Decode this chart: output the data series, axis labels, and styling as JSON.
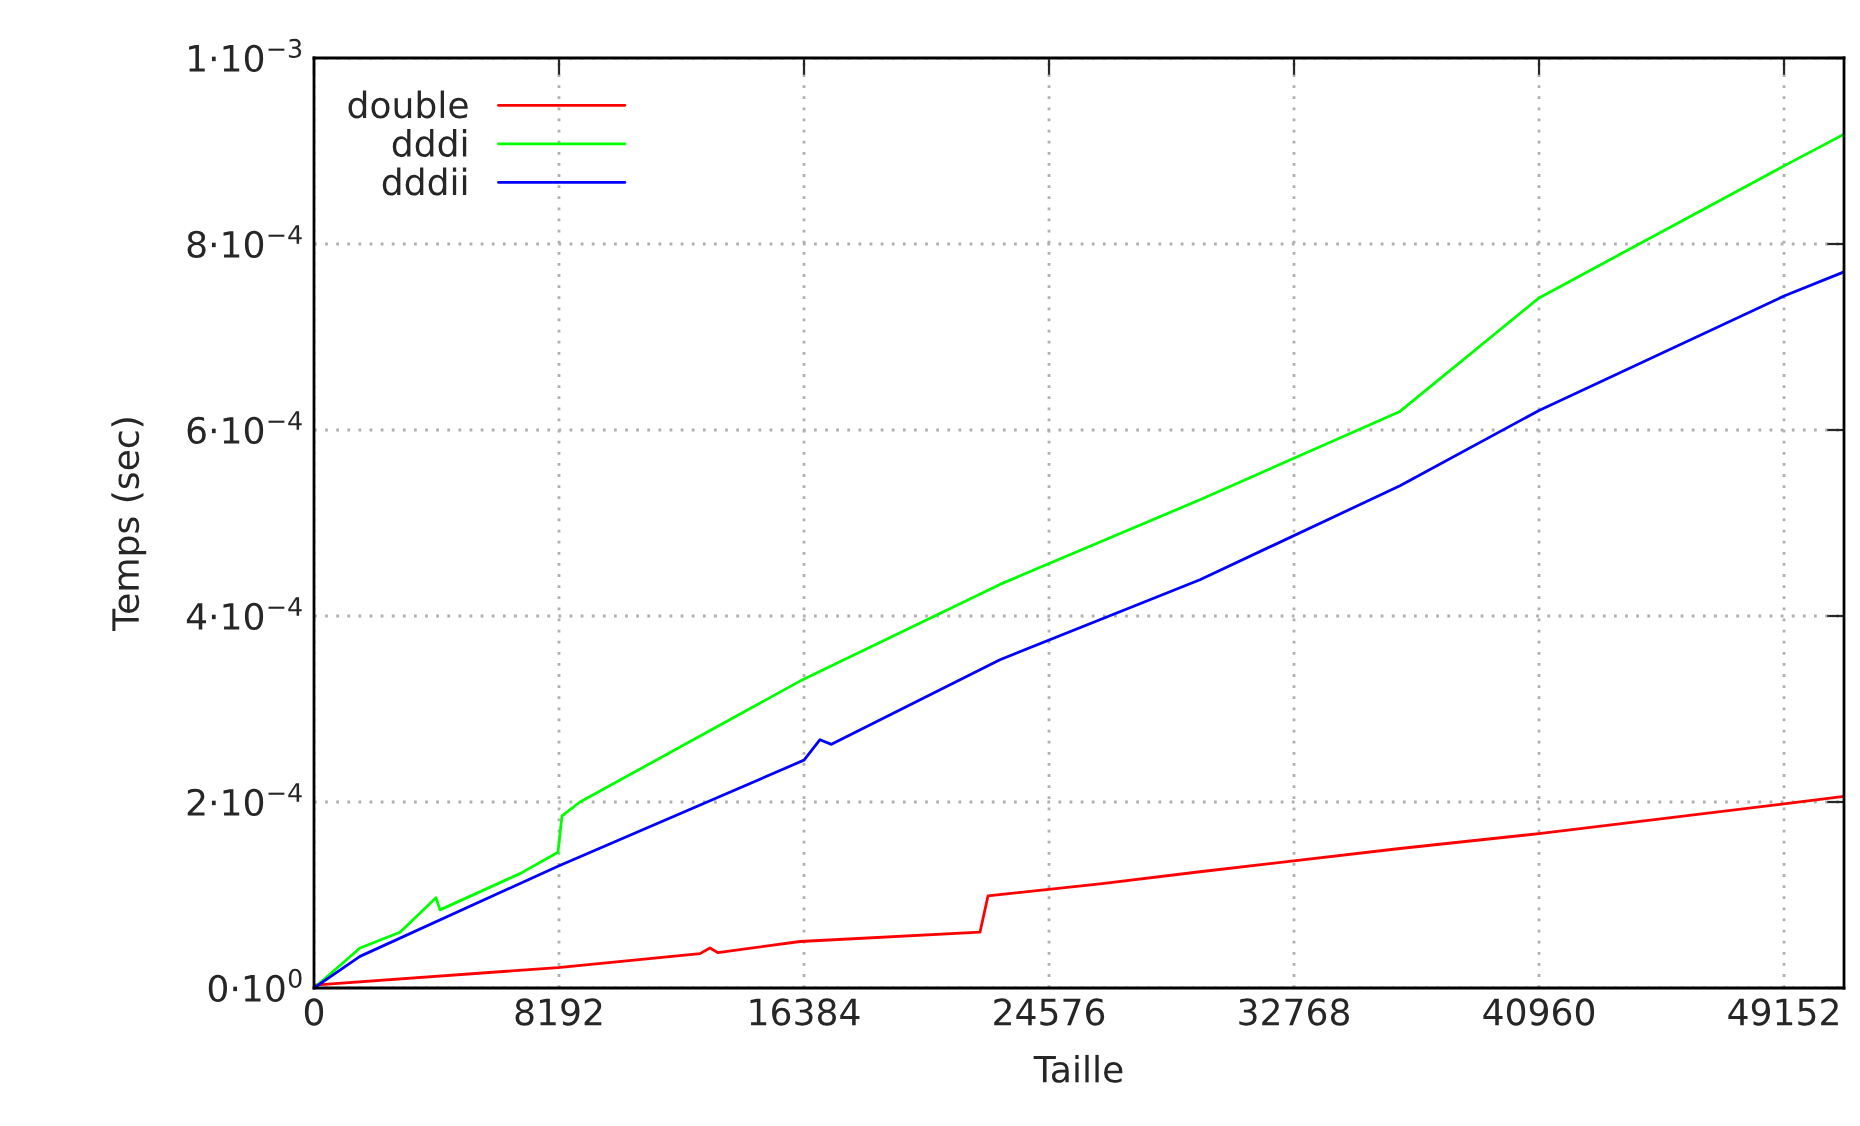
{
  "chart_data": {
    "type": "line",
    "xlabel": "Taille",
    "ylabel": "Temps (sec)",
    "xlim": [
      0,
      51157
    ],
    "xticks": [
      0,
      8192,
      16384,
      24576,
      32768,
      40960,
      49152
    ],
    "ylim": [
      0,
      0.001
    ],
    "yticks": [
      {
        "value": 0,
        "label": "0·10$^{0}$"
      },
      {
        "value": 0.0002,
        "label": "2·10$^{−4}$"
      },
      {
        "value": 0.0004,
        "label": "4·10$^{−4}$"
      },
      {
        "value": 0.0006,
        "label": "6·10$^{−4}$"
      },
      {
        "value": 0.0008,
        "label": "8·10$^{−4}$"
      },
      {
        "value": 0.001,
        "label": "1·10$^{−3}$"
      }
    ],
    "grid": true,
    "legend": "top left",
    "marker": "none",
    "line_style": "solid",
    "series": [
      {
        "name": "double",
        "color": "#ff0000",
        "x": [
          0,
          8158,
          12906,
          13240,
          13500,
          16250,
          22268,
          22535,
          26280,
          29623,
          36311,
          40960,
          49152,
          51157
        ],
        "values": [
          3e-06,
          2.2e-05,
          3.7e-05,
          4.3e-05,
          3.8e-05,
          5e-05,
          6e-05,
          9.9e-05,
          0.000112,
          0.000125,
          0.00015,
          0.000166,
          0.000198,
          0.000206
        ]
      },
      {
        "name": "dddi",
        "color": "#00ff00",
        "x": [
          0,
          1538,
          2875,
          4079,
          4213,
          6888,
          8158,
          8292,
          8894,
          16250,
          22936,
          29623,
          36311,
          40960,
          49152,
          51157
        ],
        "values": [
          0,
          4.3e-05,
          6e-05,
          9.7e-05,
          8.4e-05,
          0.000123,
          0.000146,
          0.000185,
          0.0002,
          0.00033,
          0.000434,
          0.000525,
          0.00062,
          0.000742,
          0.000884,
          0.000918
        ]
      },
      {
        "name": "dddii",
        "color": "#0000ff",
        "x": [
          0,
          1538,
          8158,
          16384,
          16918,
          17300,
          22936,
          29623,
          36311,
          40960,
          49152,
          51157
        ],
        "values": [
          0,
          3.4e-05,
          0.000131,
          0.000245,
          0.000267,
          0.000262,
          0.000353,
          0.000439,
          0.00054,
          0.000621,
          0.000744,
          0.00077
        ]
      }
    ]
  }
}
